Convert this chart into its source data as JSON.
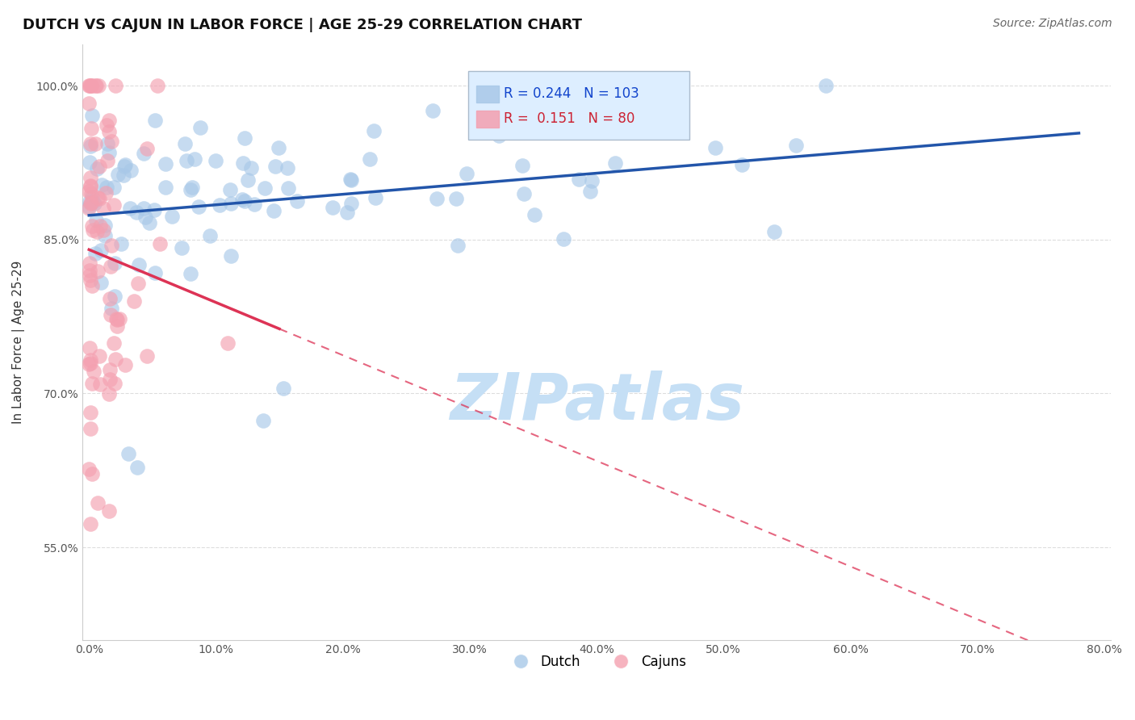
{
  "title": "DUTCH VS CAJUN IN LABOR FORCE | AGE 25-29 CORRELATION CHART",
  "source": "Source: ZipAtlas.com",
  "ylabel": "In Labor Force | Age 25-29",
  "x_tick_labels": [
    "0.0%",
    "10.0%",
    "20.0%",
    "30.0%",
    "40.0%",
    "50.0%",
    "60.0%",
    "70.0%",
    "80.0%"
  ],
  "x_ticks": [
    0.0,
    0.1,
    0.2,
    0.3,
    0.4,
    0.5,
    0.6,
    0.7,
    0.8
  ],
  "y_tick_labels": [
    "55.0%",
    "70.0%",
    "85.0%",
    "100.0%"
  ],
  "y_ticks": [
    0.55,
    0.7,
    0.85,
    1.0
  ],
  "xlim": [
    -0.005,
    0.805
  ],
  "ylim": [
    0.46,
    1.04
  ],
  "dutch_R": 0.244,
  "dutch_N": 103,
  "cajun_R": 0.151,
  "cajun_N": 80,
  "dutch_color": "#a8c8e8",
  "cajun_color": "#f4a0b0",
  "dutch_line_color": "#2255aa",
  "cajun_line_color": "#dd3355",
  "cajun_dash_color": "#dd3355",
  "watermark": "ZIPatlas",
  "watermark_color": "#c5dff5",
  "legend_box_color": "#ddeeff",
  "legend_box_edge": "#aabbcc",
  "legend_R_color_dutch": "#1144cc",
  "legend_R_color_cajun": "#cc2233",
  "grid_color": "#dddddd",
  "bg_color": "#ffffff",
  "title_fontsize": 13,
  "axis_label_fontsize": 11,
  "tick_fontsize": 10,
  "legend_fontsize": 12,
  "source_fontsize": 10,
  "dutch_seed": 42,
  "cajun_seed": 77,
  "dot_size": 180
}
